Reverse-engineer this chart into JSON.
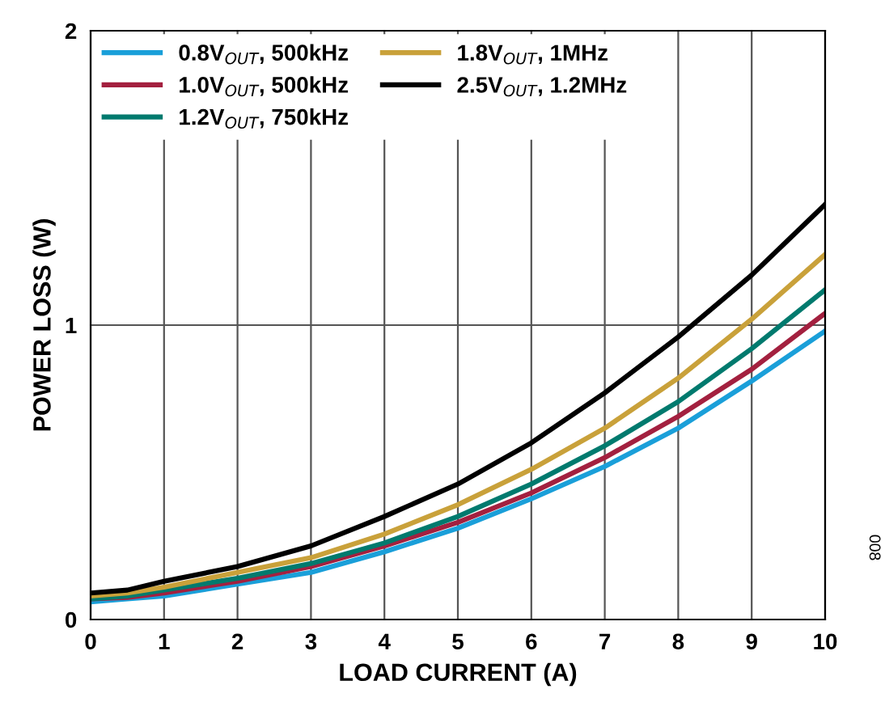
{
  "chart_data": {
    "type": "line",
    "xlabel": "LOAD CURRENT (A)",
    "ylabel": "POWER LOSS (W)",
    "x": [
      0,
      0.5,
      1,
      2,
      3,
      4,
      5,
      6,
      7,
      8,
      9,
      10
    ],
    "series": [
      {
        "name": "0.8V$_{OUT}$, 500kHz",
        "color": "#1a9fd9",
        "values": [
          0.06,
          0.07,
          0.08,
          0.12,
          0.16,
          0.23,
          0.31,
          0.41,
          0.52,
          0.65,
          0.81,
          0.98
        ]
      },
      {
        "name": "1.0V$_{OUT}$, 500kHz",
        "color": "#a3203f",
        "values": [
          0.07,
          0.075,
          0.09,
          0.13,
          0.18,
          0.25,
          0.33,
          0.43,
          0.55,
          0.69,
          0.85,
          1.04
        ]
      },
      {
        "name": "1.2V$_{OUT}$, 750kHz",
        "color": "#007a6e",
        "values": [
          0.07,
          0.08,
          0.1,
          0.14,
          0.19,
          0.26,
          0.35,
          0.46,
          0.59,
          0.74,
          0.92,
          1.12
        ]
      },
      {
        "name": "1.8V$_{OUT}$, 1MHz",
        "color": "#c9a13a",
        "values": [
          0.08,
          0.09,
          0.11,
          0.16,
          0.21,
          0.29,
          0.39,
          0.51,
          0.65,
          0.82,
          1.02,
          1.24
        ]
      },
      {
        "name": "2.5V$_{OUT}$, 1.2MHz",
        "color": "#000000",
        "values": [
          0.09,
          0.1,
          0.13,
          0.18,
          0.25,
          0.35,
          0.46,
          0.6,
          0.77,
          0.96,
          1.17,
          1.41
        ]
      }
    ],
    "xlim": [
      0,
      10
    ],
    "xticks": [
      0,
      1,
      2,
      3,
      4,
      5,
      6,
      7,
      8,
      9,
      10
    ],
    "ylim": [
      0,
      2
    ],
    "yticks": [
      0,
      1,
      2
    ],
    "grid": true,
    "legend": "top left",
    "marker": "none",
    "line_style": "solid",
    "annotations": [
      "008"
    ]
  }
}
